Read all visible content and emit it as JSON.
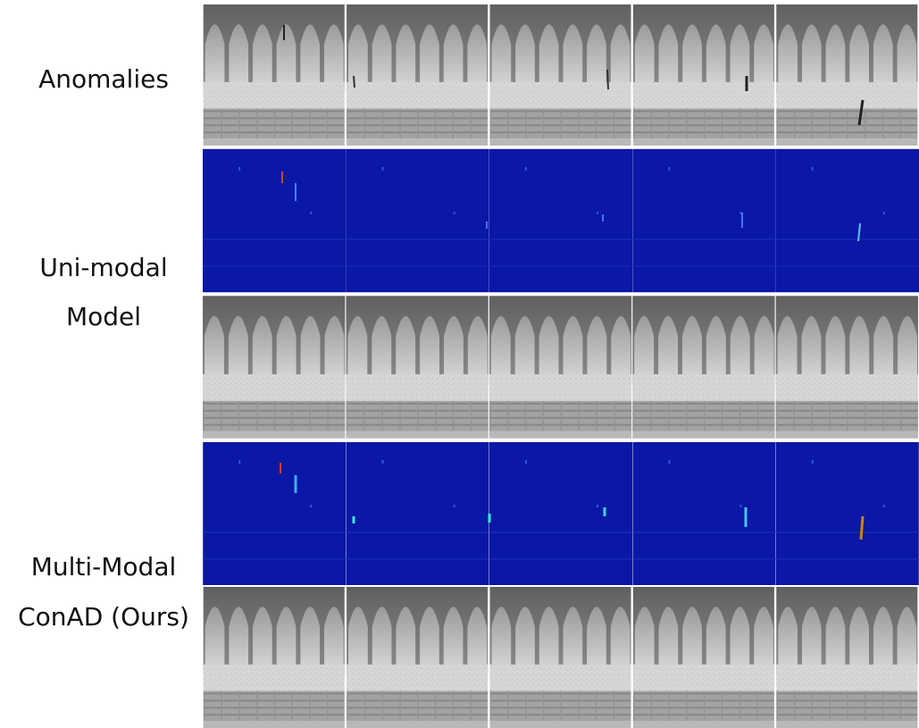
{
  "labels": [
    {
      "lines": [
        "Anomalies"
      ]
    },
    {
      "lines": [
        "Uni-modal",
        "Model"
      ]
    },
    {
      "lines": [
        "Multi-Modal",
        "ConAD (Ours)"
      ]
    }
  ]
}
